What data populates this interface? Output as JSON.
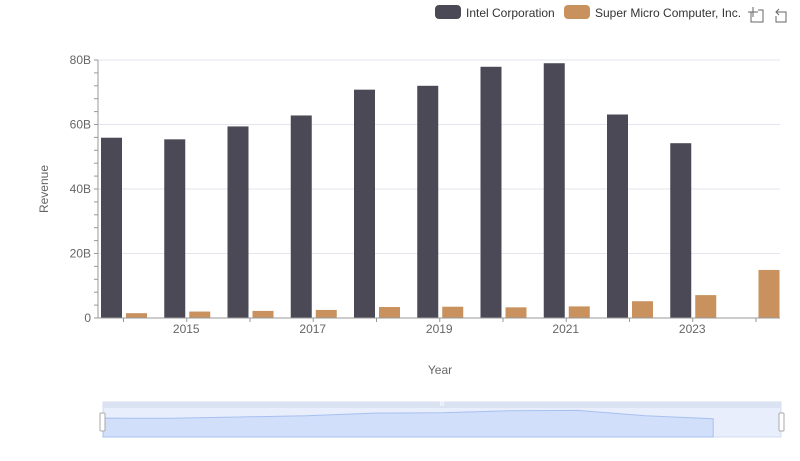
{
  "chart_data": {
    "type": "bar",
    "title": "",
    "xlabel": "Year",
    "ylabel": "Revenue",
    "ylim": [
      0,
      80
    ],
    "y_unit": "B",
    "yticks": [
      "0",
      "20B",
      "40B",
      "60B",
      "80B"
    ],
    "categories": [
      "2014",
      "2015",
      "2016",
      "2017",
      "2018",
      "2019",
      "2020",
      "2021",
      "2022",
      "2023",
      "2024"
    ],
    "xtick_labels": [
      "2015",
      "2017",
      "2019",
      "2021",
      "2023"
    ],
    "grid": true,
    "legend_position": "top-right",
    "series": [
      {
        "name": "Intel Corporation",
        "color": "#4a4955",
        "values": [
          55.9,
          55.4,
          59.4,
          62.8,
          70.8,
          72.0,
          77.9,
          79.0,
          63.1,
          54.2,
          null
        ]
      },
      {
        "name": "Super Micro Computer, Inc.",
        "color": "#c8915d",
        "values": [
          1.5,
          2.0,
          2.2,
          2.5,
          3.4,
          3.5,
          3.3,
          3.6,
          5.2,
          7.1,
          14.9
        ]
      }
    ]
  },
  "toolbar": {
    "zoom_icon": "zoom-select-icon",
    "reset_icon": "zoom-reset-icon"
  }
}
